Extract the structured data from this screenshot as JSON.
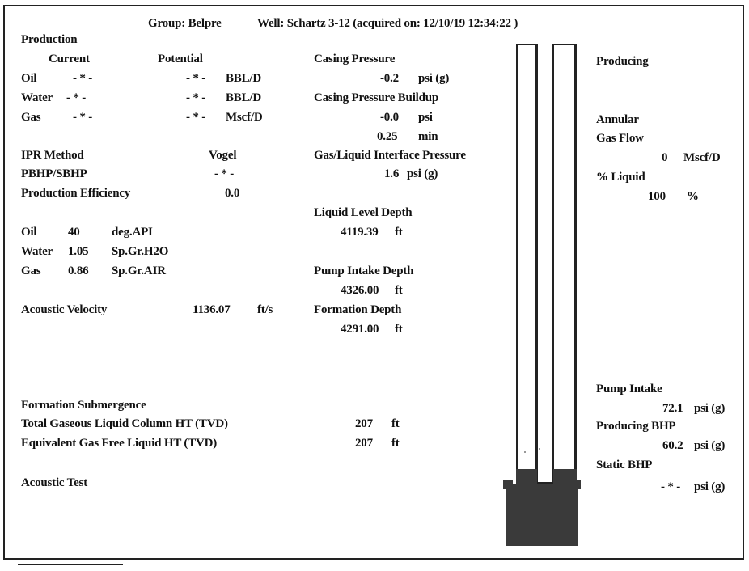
{
  "header": {
    "group": "Group: Belpre",
    "well": "Well: Schartz 3-12 (acquired on: 12/10/19 12:34:22 )"
  },
  "production": {
    "title": "Production",
    "col_current": "Current",
    "col_potential": "Potential",
    "rows": [
      {
        "label": "Oil",
        "current": "- * -",
        "potential": "- * -",
        "unit": "BBL/D"
      },
      {
        "label": "Water",
        "current": "- * -",
        "potential": "- * -",
        "unit": "BBL/D"
      },
      {
        "label": "Gas",
        "current": "- * -",
        "potential": "- * -",
        "unit": "Mscf/D"
      }
    ]
  },
  "ipr": {
    "method_label": "IPR Method",
    "method_value": "Vogel",
    "pbhp_label": "PBHP/SBHP",
    "pbhp_value": "- * -",
    "eff_label": "Production Efficiency",
    "eff_value": "0.0"
  },
  "fluids": {
    "oil": {
      "label": "Oil",
      "value": "40",
      "unit": "deg.API"
    },
    "water": {
      "label": "Water",
      "value": "1.05",
      "unit": "Sp.Gr.H2O"
    },
    "gas": {
      "label": "Gas",
      "value": "0.86",
      "unit": "Sp.Gr.AIR"
    }
  },
  "acoustic_velocity": {
    "label": "Acoustic Velocity",
    "value": "1136.07",
    "unit": "ft/s"
  },
  "casing": {
    "pressure_label": "Casing Pressure",
    "pressure_value": "-0.2",
    "pressure_unit": "psi (g)",
    "buildup_label": "Casing Pressure Buildup",
    "buildup_value": "-0.0",
    "buildup_unit": "psi",
    "buildup_time": "0.25",
    "buildup_time_unit": "min",
    "interface_label": "Gas/Liquid Interface Pressure",
    "interface_value": "1.6",
    "interface_unit": "psi (g)"
  },
  "depths": {
    "liquid_label": "Liquid Level Depth",
    "liquid_value": "4119.39",
    "liquid_unit": "ft",
    "pump_label": "Pump Intake Depth",
    "pump_value": "4326.00",
    "pump_unit": "ft",
    "formation_label": "Formation Depth",
    "formation_value": "4291.00",
    "formation_unit": "ft"
  },
  "submergence": {
    "title": "Formation Submergence",
    "tglc_label": "Total Gaseous Liquid Column HT (TVD)",
    "tglc_value": "207",
    "tglc_unit": "ft",
    "egfl_label": "Equivalent Gas Free Liquid HT (TVD)",
    "egfl_value": "207",
    "egfl_unit": "ft"
  },
  "acoustic_test": "Acoustic Test",
  "right_panel": {
    "status": "Producing",
    "annular": "Annular",
    "gas_flow": "Gas Flow",
    "gas_flow_value": "0",
    "gas_flow_unit": "Mscf/D",
    "pct_liquid_label": "% Liquid",
    "pct_liquid_value": "100",
    "pct_liquid_unit": "%",
    "pump_intake_label": "Pump Intake",
    "pump_intake_value": "72.1",
    "pump_intake_unit": "psi (g)",
    "producing_bhp_label": "Producing BHP",
    "producing_bhp_value": "60.2",
    "producing_bhp_unit": "psi (g)",
    "static_bhp_label": "Static BHP",
    "static_bhp_value": "- * -",
    "static_bhp_unit": "psi (g)"
  }
}
